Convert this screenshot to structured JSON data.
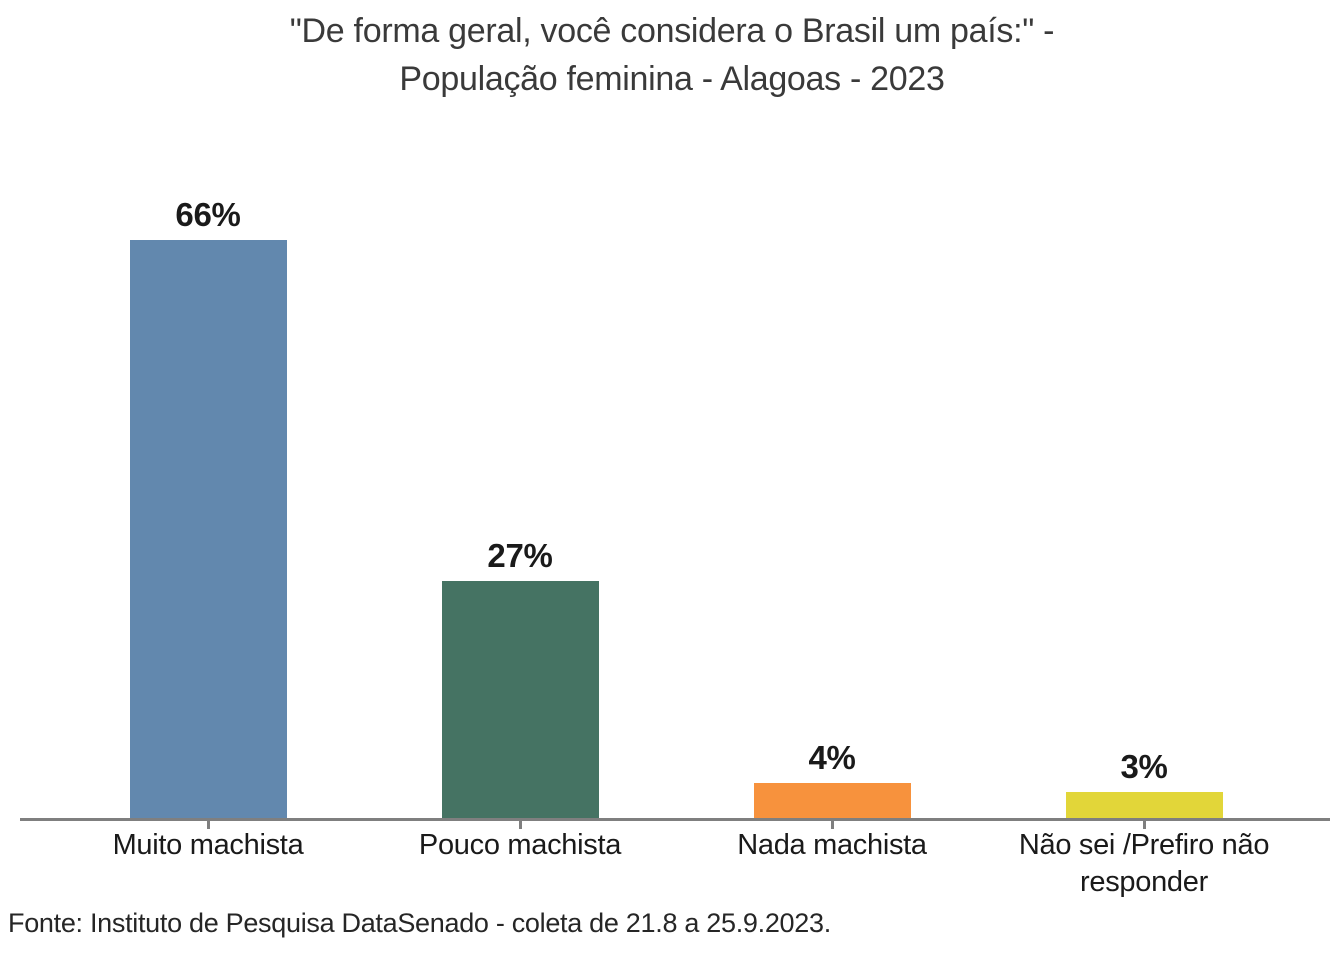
{
  "chart_data": {
    "type": "bar",
    "title": "\"De forma geral, você considera o Brasil um país:\" - População feminina - Alagoas - 2023",
    "title_lines": [
      "\"De forma geral, você considera o Brasil um país:\" -",
      "População feminina - Alagoas - 2023"
    ],
    "categories": [
      "Muito machista",
      "Pouco machista",
      "Nada machista",
      "Não sei /Prefiro não responder"
    ],
    "values": [
      66,
      27,
      4,
      3
    ],
    "value_labels": [
      "66%",
      "27%",
      "4%",
      "3%"
    ],
    "unit": "%",
    "bar_colors": [
      "#6288AE",
      "#457363",
      "#F7923D",
      "#E2D639"
    ],
    "xlabel": "",
    "ylabel": "",
    "ylim": [
      0,
      70
    ],
    "grid": false,
    "legend": false,
    "axis_color": "#7F7F7F",
    "source": "Fonte: Instituto de Pesquisa DataSenado - coleta de 21.8 a 25.9.2023."
  }
}
